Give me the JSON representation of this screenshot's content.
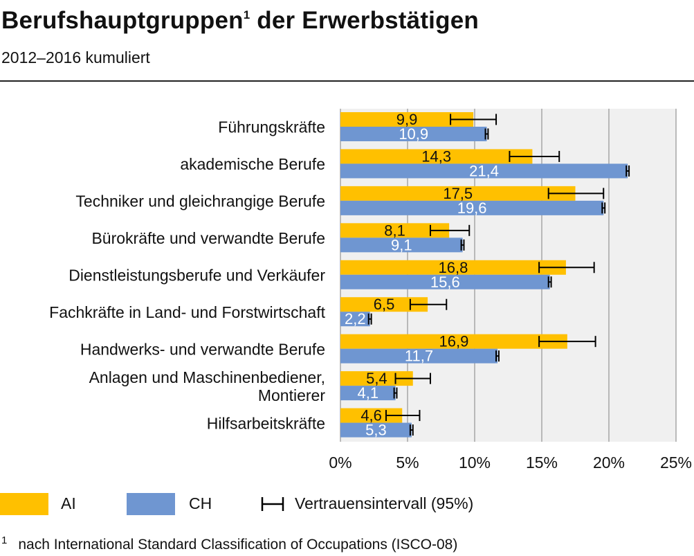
{
  "title": {
    "text": "Berufshauptgruppen",
    "sup": "1",
    "text_rest": " der Erwerbstätigen"
  },
  "subtitle": "2012–2016 kumuliert",
  "legend": {
    "ai_label": "AI",
    "ch_label": "CH",
    "ci_label": "Vertrauensintervall (95%)"
  },
  "footnote": {
    "mark": "1",
    "text": "nach International Standard Classification of Occupations (ISCO-08)"
  },
  "colors": {
    "ai": "#FFC000",
    "ch": "#6F96D1",
    "plot_bg": "#F0F0F0",
    "grid": "#A6A6A6",
    "errorbar": "#000000"
  },
  "chart_data": {
    "type": "bar",
    "orientation": "horizontal",
    "categories": [
      [
        "Führungskräfte"
      ],
      [
        "akademische Berufe"
      ],
      [
        "Techniker und gleichrangige Berufe"
      ],
      [
        "Bürokräfte und verwandte Berufe"
      ],
      [
        "Dienstleistungsberufe und Verkäufer"
      ],
      [
        "Fachkräfte in Land- und Forstwirtschaft"
      ],
      [
        "Handwerks- und verwandte Berufe"
      ],
      [
        "Anlagen und Maschinenbediener,",
        "Montierer"
      ],
      [
        "Hilfsarbeitskräfte"
      ]
    ],
    "series": [
      {
        "name": "AI",
        "values": [
          9.9,
          14.3,
          17.5,
          8.1,
          16.8,
          6.5,
          16.9,
          5.4,
          4.6
        ],
        "labels": [
          "9,9",
          "14,3",
          "17,5",
          "8,1",
          "16,8",
          "6,5",
          "16,9",
          "5,4",
          "4,6"
        ],
        "ci": [
          [
            8.2,
            11.6
          ],
          [
            12.6,
            16.3
          ],
          [
            15.5,
            19.6
          ],
          [
            6.7,
            9.6
          ],
          [
            14.8,
            18.9
          ],
          [
            5.2,
            7.9
          ],
          [
            14.8,
            19.0
          ],
          [
            4.1,
            6.7
          ],
          [
            3.4,
            5.9
          ]
        ]
      },
      {
        "name": "CH",
        "values": [
          10.9,
          21.4,
          19.6,
          9.1,
          15.6,
          2.2,
          11.7,
          4.1,
          5.3
        ],
        "labels": [
          "10,9",
          "21,4",
          "19,6",
          "9,1",
          "15,6",
          "2,2",
          "11,7",
          "4,1",
          "5,3"
        ],
        "ci": [
          [
            10.8,
            11.0
          ],
          [
            21.3,
            21.5
          ],
          [
            19.5,
            19.7
          ],
          [
            9.0,
            9.2
          ],
          [
            15.5,
            15.7
          ],
          [
            2.1,
            2.3
          ],
          [
            11.6,
            11.8
          ],
          [
            4.0,
            4.2
          ],
          [
            5.2,
            5.4
          ]
        ]
      }
    ],
    "xlim": [
      0,
      25
    ],
    "xticks": [
      0,
      5,
      10,
      15,
      20,
      25
    ],
    "xtick_labels": [
      "0%",
      "5%",
      "10%",
      "15%",
      "20%",
      "25%"
    ],
    "grid": true,
    "legend_position": "bottom"
  }
}
